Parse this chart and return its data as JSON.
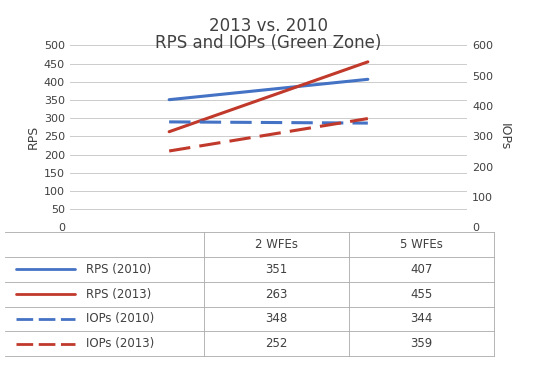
{
  "title_line1": "2013 vs. 2010",
  "title_line2": "RPS and IOPs (Green Zone)",
  "x_values": [
    1,
    2
  ],
  "rps_2010": [
    351,
    407
  ],
  "rps_2013": [
    263,
    455
  ],
  "iops_2010": [
    348,
    344
  ],
  "iops_2013": [
    252,
    359
  ],
  "color_blue": "#4472C4",
  "color_red": "#C0392B",
  "ylabel_left": "RPS",
  "ylabel_right": "IOPs",
  "ylim_left": [
    0,
    500
  ],
  "ylim_right": [
    0,
    600
  ],
  "yticks_left": [
    0,
    50,
    100,
    150,
    200,
    250,
    300,
    350,
    400,
    450,
    500
  ],
  "yticks_right": [
    0,
    100,
    200,
    300,
    400,
    500,
    600
  ],
  "table_headers": [
    "",
    "2 WFEs",
    "5 WFEs"
  ],
  "table_rows": [
    [
      "RPS (2010)",
      "351",
      "407"
    ],
    [
      "RPS (2013)",
      "263",
      "455"
    ],
    [
      "IOPs (2010)",
      "348",
      "344"
    ],
    [
      "IOPs (2013)",
      "252",
      "359"
    ]
  ],
  "background_color": "#FFFFFF",
  "grid_color": "#CCCCCC",
  "font_color": "#404040"
}
